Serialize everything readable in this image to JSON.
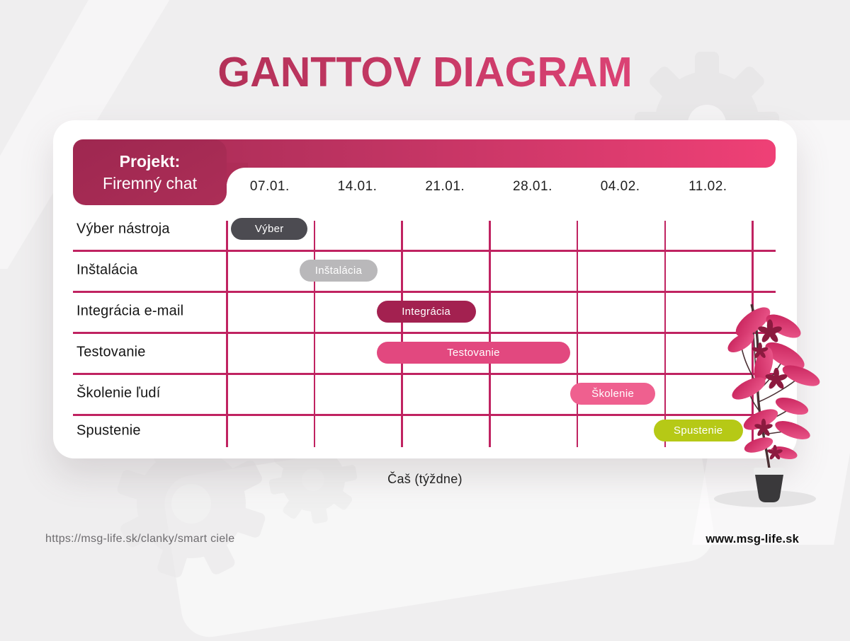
{
  "page": {
    "title": "GANTTOV DIAGRAM",
    "axis_label": "Čaš (týždne)",
    "footer": {
      "source_url": "https://msg-life.sk/clanky/smart ciele",
      "site_url": "www.msg-life.sk"
    }
  },
  "project": {
    "label": "Projekt:",
    "name": "Firemný chat"
  },
  "chart_data": {
    "type": "gantt",
    "title": "GANTTOV DIAGRAM",
    "project": "Firemný chat",
    "x_axis": {
      "label": "Čaš (týždne)",
      "unit": "weeks",
      "tick_labels": [
        "07.01.",
        "14.01.",
        "21.01.",
        "28.01.",
        "04.02.",
        "11.02."
      ]
    },
    "tasks": [
      {
        "row_label": "Výber nástroja",
        "bar_label": "Výber",
        "start_week": 0.06,
        "end_week": 0.93,
        "color": "#4c4b51"
      },
      {
        "row_label": "Inštalácia",
        "bar_label": "Inštalácia",
        "start_week": 0.84,
        "end_week": 1.73,
        "color": "#b9b8ba"
      },
      {
        "row_label": "Integrácia e-mail",
        "bar_label": "Integrácia",
        "start_week": 1.72,
        "end_week": 2.85,
        "color": "#a32150"
      },
      {
        "row_label": "Testovanie",
        "bar_label": "Testovanie",
        "start_week": 1.72,
        "end_week": 3.93,
        "color": "#e2487f"
      },
      {
        "row_label": "Školenie ľudí",
        "bar_label": "Školenie",
        "start_week": 3.93,
        "end_week": 4.9,
        "color": "#ef608f"
      },
      {
        "row_label": "Spustenie",
        "bar_label": "Spustenie",
        "start_week": 4.88,
        "end_week": 5.9,
        "color": "#b6c916"
      }
    ],
    "grid": {
      "columns": 6,
      "rows": 6,
      "line_color": "#c02361",
      "grid_on": true
    },
    "legend": null
  },
  "colors": {
    "page_bg": "#efeeef",
    "card_bg": "#ffffff",
    "title_gradient": [
      "#a2294c",
      "#ec4a80"
    ],
    "header_gradient": [
      "#a22a52",
      "#ef4076"
    ],
    "project_block": "#a42a53",
    "grid_line": "#c02361"
  }
}
